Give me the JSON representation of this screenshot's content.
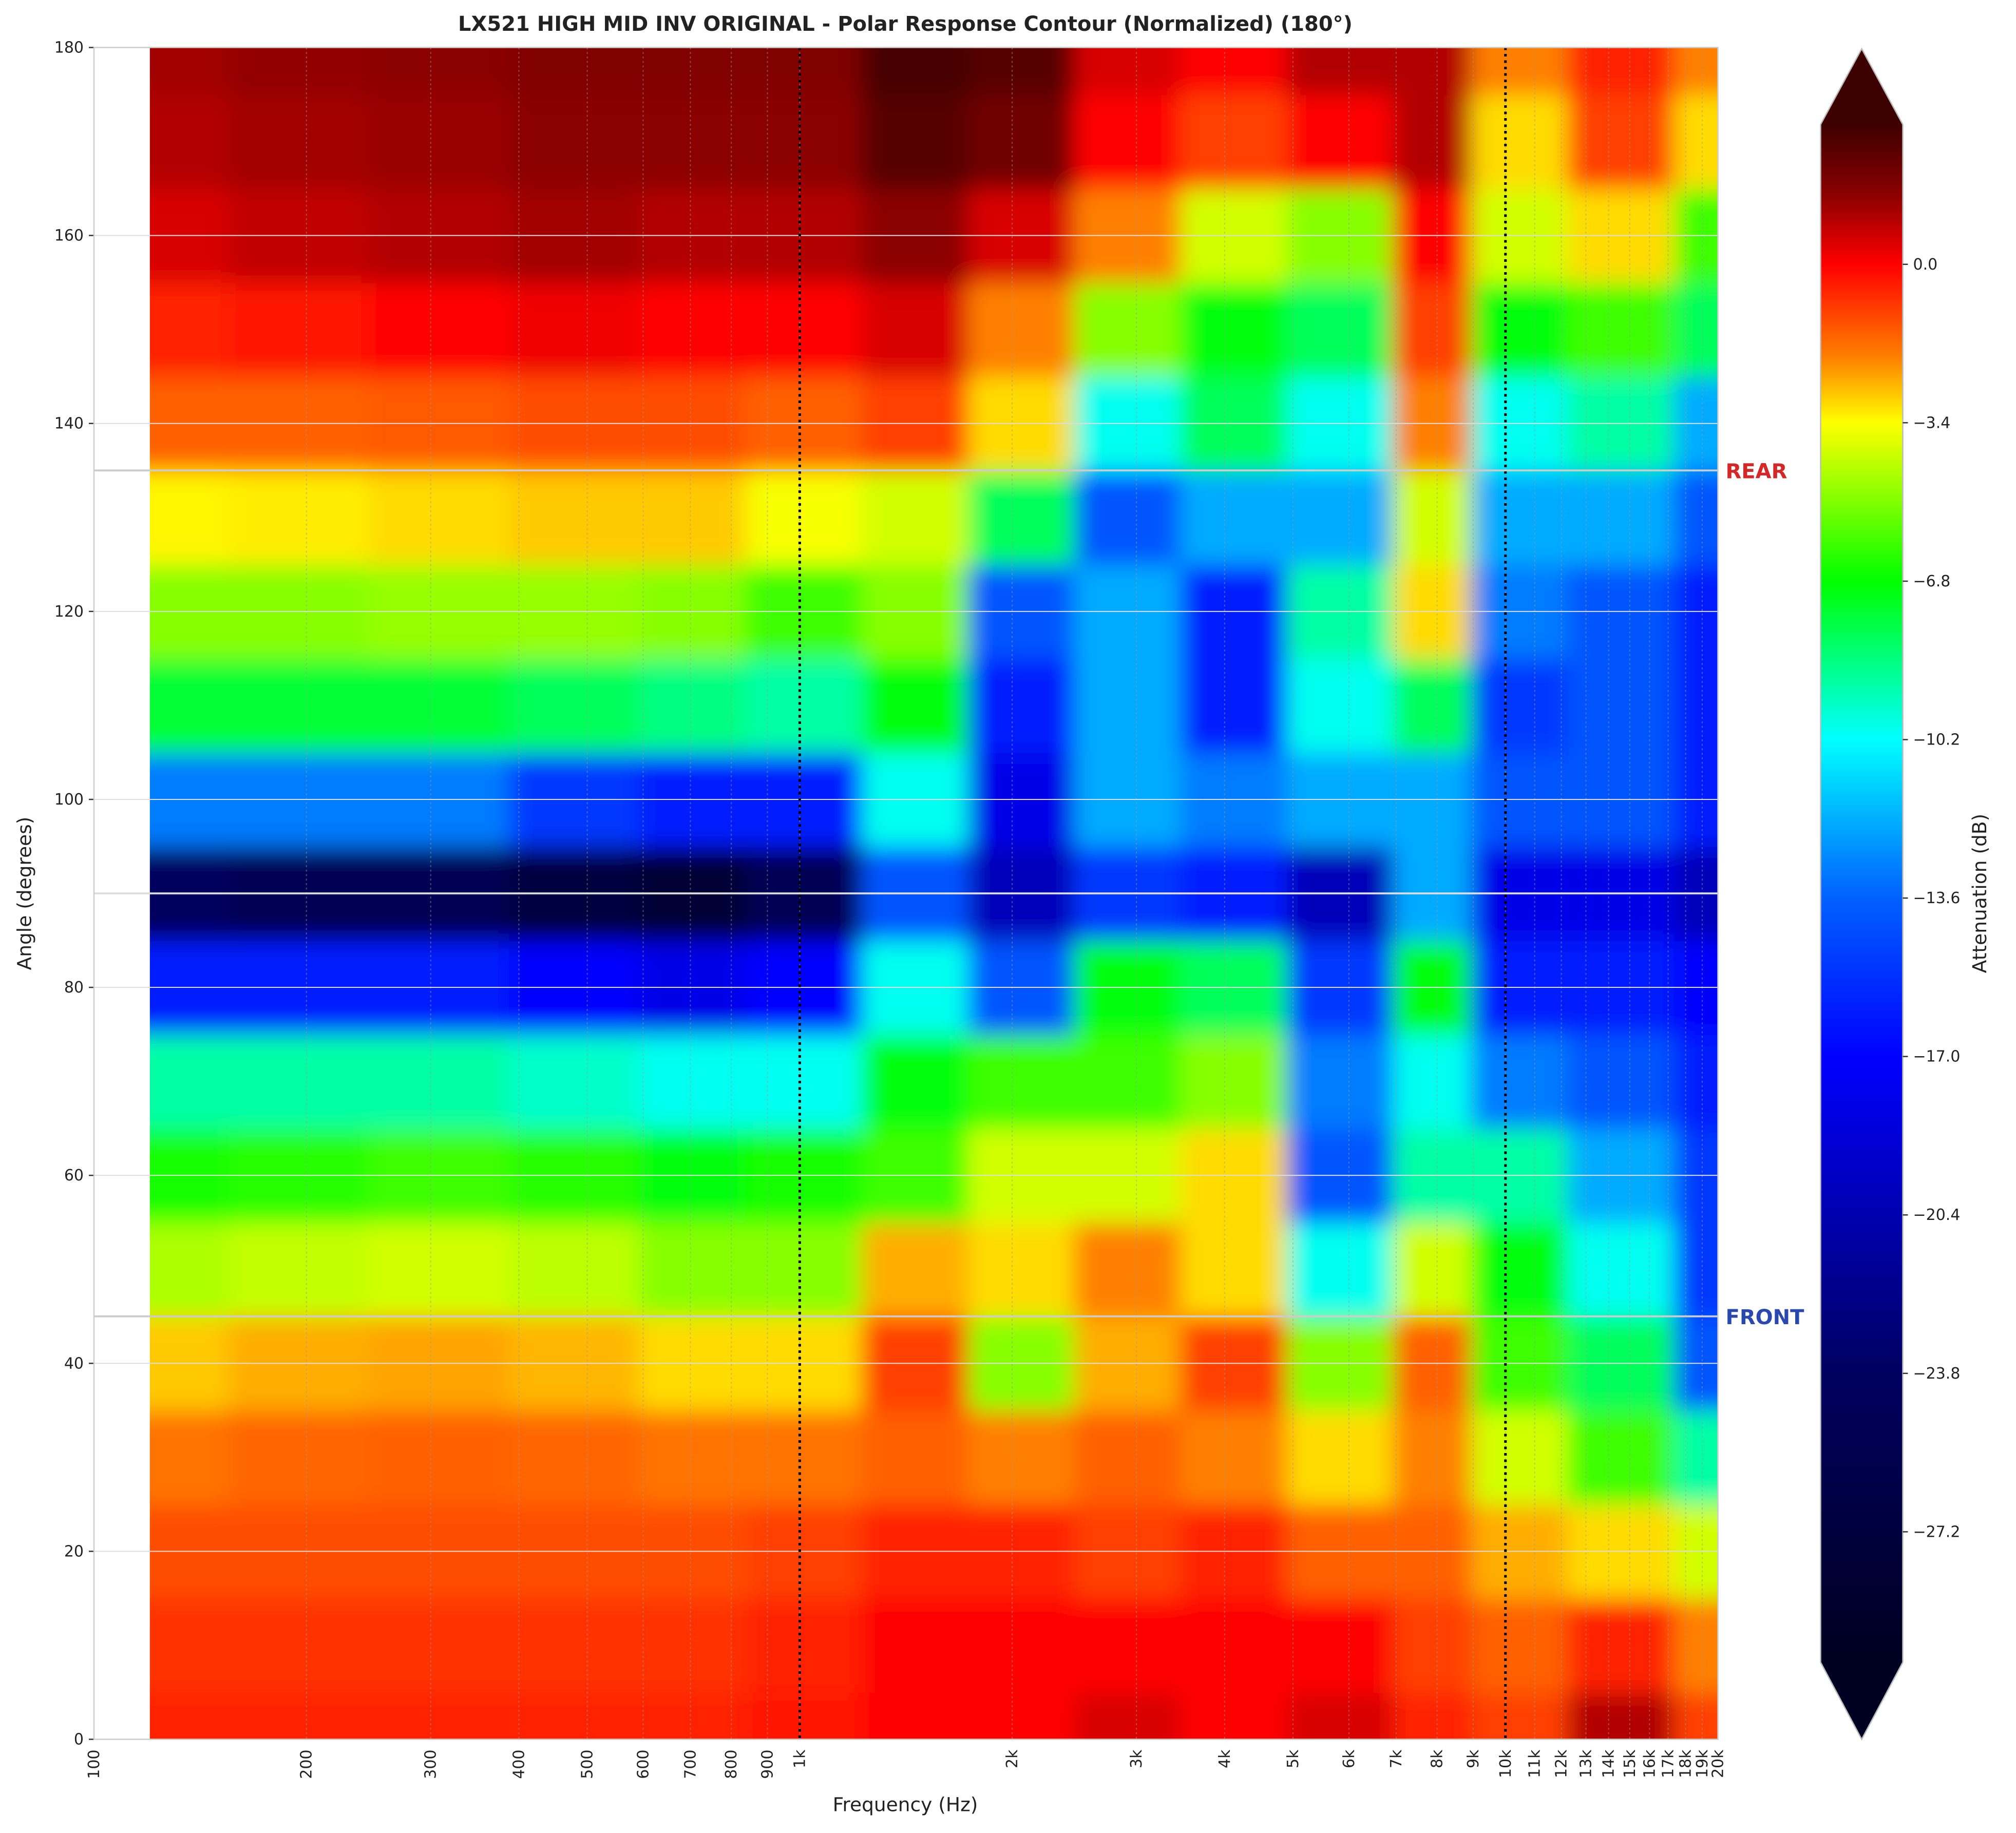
{
  "chart_data": {
    "type": "contour",
    "title": "LX521 HIGH MID INV ORIGINAL - Polar Response Contour (Normalized) (180°)",
    "x_label": "Frequency (Hz)",
    "y_label": "Angle (degrees)",
    "colorbar_label": "Attenuation (dB)",
    "x_scale": "log",
    "xlim": [
      100,
      20000
    ],
    "ylim": [
      0,
      180
    ],
    "zlim": [
      -30,
      3
    ],
    "xticks": [
      100,
      200,
      300,
      400,
      500,
      600,
      700,
      800,
      900,
      {
        "value": 1000,
        "label": "1k"
      },
      {
        "value": 2000,
        "label": "2k"
      },
      {
        "value": 3000,
        "label": "3k"
      },
      {
        "value": 4000,
        "label": "4k"
      },
      {
        "value": 5000,
        "label": "5k"
      },
      {
        "value": 6000,
        "label": "6k"
      },
      {
        "value": 7000,
        "label": "7k"
      },
      {
        "value": 8000,
        "label": "8k"
      },
      {
        "value": 9000,
        "label": "9k"
      },
      {
        "value": 10000,
        "label": "10k"
      },
      {
        "value": 11000,
        "label": "11k"
      },
      {
        "value": 12000,
        "label": "12k"
      },
      {
        "value": 13000,
        "label": "13k"
      },
      {
        "value": 14000,
        "label": "14k"
      },
      {
        "value": 15000,
        "label": "15k"
      },
      {
        "value": 16000,
        "label": "16k"
      },
      {
        "value": 17000,
        "label": "17k"
      },
      {
        "value": 18000,
        "label": "18k"
      },
      {
        "value": 19000,
        "label": "19k"
      },
      {
        "value": 20000,
        "label": "20k"
      }
    ],
    "yticks": [
      0,
      20,
      40,
      60,
      80,
      100,
      120,
      140,
      160,
      180
    ],
    "zticks": [
      {
        "value": 0,
        "label": "0.0"
      },
      {
        "value": -3.4,
        "label": "−3.4"
      },
      {
        "value": -6.8,
        "label": "−6.8"
      },
      {
        "value": -10.2,
        "label": "−10.2"
      },
      {
        "value": -13.6,
        "label": "−13.6"
      },
      {
        "value": -17,
        "label": "−17.0"
      },
      {
        "value": -20.4,
        "label": "−20.4"
      },
      {
        "value": -23.8,
        "label": "−23.8"
      },
      {
        "value": -27.2,
        "label": "−27.2"
      }
    ],
    "colormap": [
      [
        -30,
        "#000020"
      ],
      [
        -23.8,
        "#000060"
      ],
      [
        -20.4,
        "#0000b0"
      ],
      [
        -17,
        "#0000ff"
      ],
      [
        -13.6,
        "#0060ff"
      ],
      [
        -10.2,
        "#00ffff"
      ],
      [
        -6.8,
        "#00ff00"
      ],
      [
        -3.4,
        "#ffff00"
      ],
      [
        -2,
        "#ff8000"
      ],
      [
        0,
        "#ff0000"
      ],
      [
        1.5,
        "#8b0000"
      ],
      [
        3,
        "#3d0000"
      ]
    ],
    "grid": true,
    "vlines": [
      1000,
      10000
    ],
    "hlines": [
      {
        "value": 135,
        "label": "REAR",
        "color": "#d62728"
      },
      {
        "value": 90,
        "color": "#dddddd"
      },
      {
        "value": 45,
        "label": "FRONT",
        "color": "#2a48b0"
      }
    ],
    "x": [
      120,
      200,
      300,
      500,
      700,
      1000,
      1500,
      2000,
      3000,
      4000,
      6000,
      8000,
      10000,
      15000,
      20000
    ],
    "y": [
      0,
      10,
      20,
      30,
      40,
      50,
      60,
      70,
      80,
      90,
      100,
      110,
      120,
      130,
      140,
      150,
      160,
      170,
      180
    ],
    "z": [
      [
        -0.5,
        -0.5,
        -0.5,
        -0.5,
        -0.5,
        -0.3,
        0,
        0,
        0.5,
        0,
        0.5,
        -0.5,
        -1,
        1,
        -1
      ],
      [
        -0.8,
        -0.8,
        -0.8,
        -0.8,
        -0.8,
        -0.5,
        0,
        0,
        0,
        0,
        0,
        -1,
        -1.5,
        -0.5,
        -2
      ],
      [
        -1.2,
        -1.2,
        -1.2,
        -1.2,
        -1.2,
        -1,
        -0.5,
        -0.5,
        -1,
        -0.5,
        -1.5,
        -1.5,
        -2.5,
        -3,
        -4
      ],
      [
        -1.8,
        -1.6,
        -1.5,
        -1.6,
        -1.8,
        -1.8,
        -1.5,
        -2,
        -1.5,
        -2,
        -3,
        -2,
        -4,
        -6,
        -9
      ],
      [
        -2.8,
        -2.5,
        -2.4,
        -2.6,
        -3,
        -3,
        -1,
        -5,
        -2.5,
        -1,
        -5,
        -1.5,
        -6,
        -8,
        -14
      ],
      [
        -4.5,
        -4.2,
        -4,
        -4.3,
        -5,
        -5,
        -2.5,
        -3,
        -2,
        -3,
        -10,
        -4,
        -7,
        -10,
        -15
      ],
      [
        -6.5,
        -6.3,
        -6,
        -6.3,
        -7,
        -6.5,
        -6,
        -4,
        -4,
        -3,
        -14,
        -9,
        -9,
        -12,
        -15
      ],
      [
        -9,
        -9,
        -9,
        -9.5,
        -10,
        -10,
        -7,
        -6,
        -6,
        -5,
        -13,
        -10,
        -13,
        -14,
        -16
      ],
      [
        -16,
        -16,
        -16,
        -17,
        -18,
        -17,
        -10,
        -14,
        -7,
        -8,
        -15,
        -7,
        -16,
        -16,
        -17
      ],
      [
        -24,
        -25,
        -25,
        -27,
        -28,
        -25,
        -14,
        -20,
        -15,
        -16,
        -20,
        -12,
        -18,
        -18,
        -20
      ],
      [
        -13,
        -13,
        -13,
        -15,
        -16,
        -16,
        -10,
        -18,
        -12,
        -13,
        -12,
        -12,
        -14,
        -14,
        -16
      ],
      [
        -7.5,
        -7.5,
        -7.5,
        -8,
        -8.5,
        -9,
        -7,
        -16,
        -12,
        -16,
        -10,
        -8,
        -15,
        -14,
        -16
      ],
      [
        -5,
        -5,
        -4.8,
        -4.8,
        -5,
        -6,
        -5,
        -14,
        -12,
        -16,
        -9,
        -3,
        -13,
        -14,
        -16
      ],
      [
        -3.3,
        -3.2,
        -3,
        -2.8,
        -2.8,
        -3.5,
        -4,
        -8,
        -14,
        -12,
        -12,
        -4,
        -12,
        -12,
        -14
      ],
      [
        -1.5,
        -1.5,
        -1.4,
        -1.2,
        -1.2,
        -1.5,
        -1,
        -3,
        -10,
        -8,
        -10,
        -2,
        -10,
        -9,
        -12
      ],
      [
        -0.5,
        -0.3,
        0,
        0.2,
        0,
        0,
        0.5,
        -2,
        -5,
        -7,
        -8,
        -1,
        -7,
        -6,
        -8
      ],
      [
        0.5,
        0.8,
        1,
        1.2,
        1,
        1,
        1.5,
        0.5,
        -2,
        -4,
        -5,
        0,
        -4,
        -3,
        -6
      ],
      [
        1,
        1.2,
        1.3,
        1.5,
        1.5,
        1.5,
        2.5,
        2,
        0,
        -1,
        0,
        1,
        -3,
        -1,
        -3
      ],
      [
        1.2,
        1.4,
        1.5,
        1.7,
        1.7,
        1.7,
        2.8,
        2.5,
        0.5,
        0,
        1,
        1,
        -2,
        -0.5,
        -2
      ]
    ]
  }
}
